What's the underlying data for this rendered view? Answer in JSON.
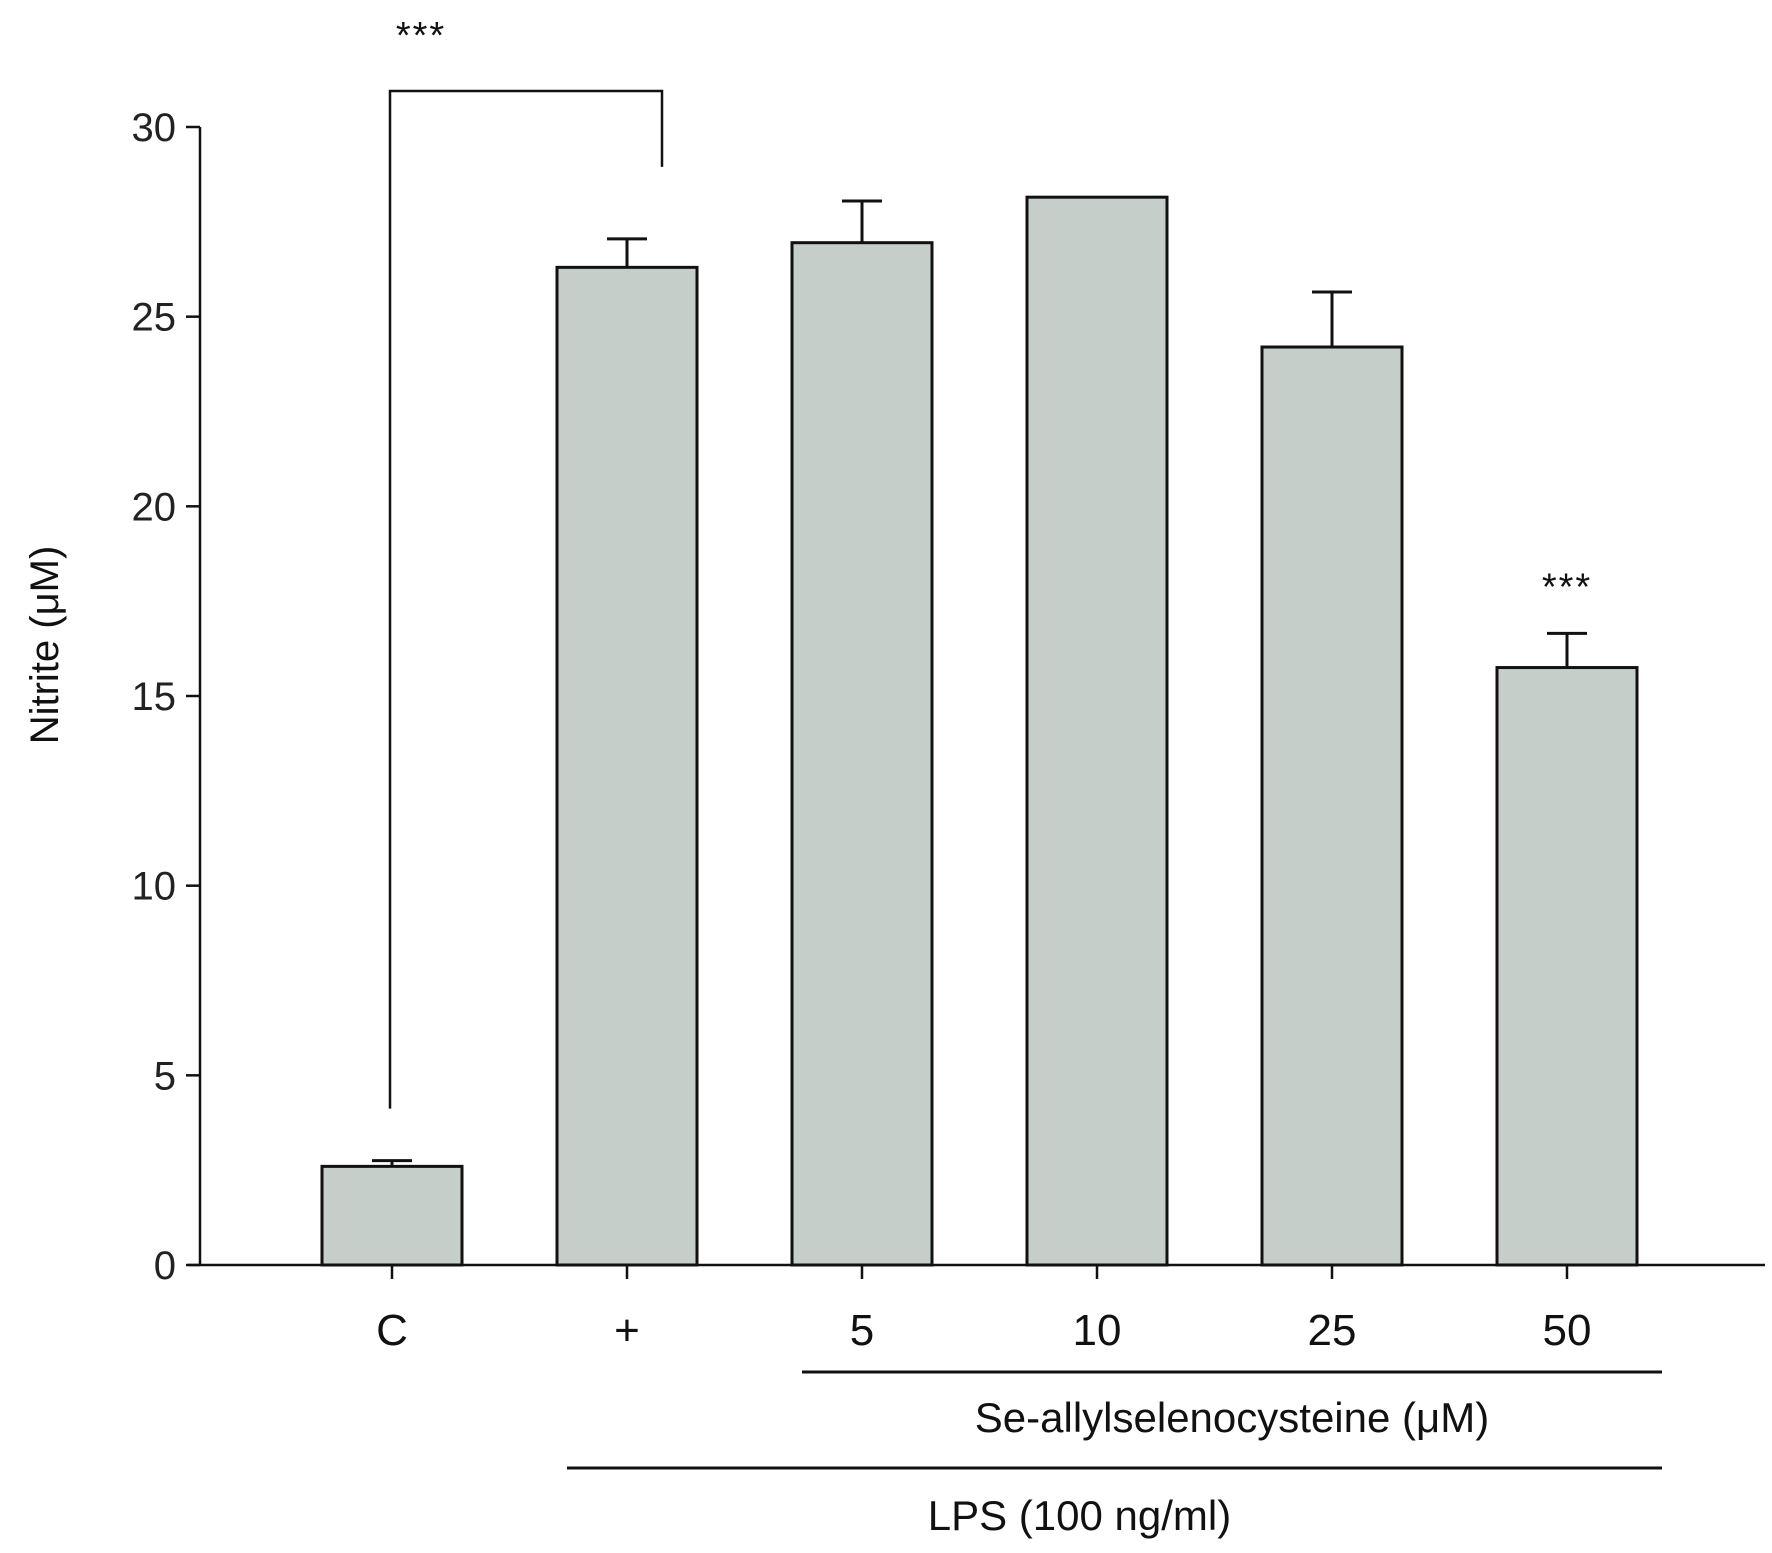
{
  "chart_data": {
    "type": "bar",
    "categories": [
      "C",
      "+",
      "5",
      "10",
      "25",
      "50"
    ],
    "values": [
      2.6,
      26.3,
      26.95,
      28.15,
      24.2,
      15.75
    ],
    "error_upper": [
      2.75,
      27.05,
      28.05,
      28.15,
      25.65,
      16.65
    ],
    "ylabel": "Nitrite (μM)",
    "ylim": [
      0,
      30
    ],
    "yticks": [
      0,
      5,
      10,
      15,
      20,
      25,
      30
    ],
    "bar_color": "#c5cec9",
    "bar_edge_color": "#111111",
    "grid": false,
    "group_labels": [
      {
        "text": "Se-allylselenocysteine (μM)",
        "categories": [
          "5",
          "10",
          "25",
          "50"
        ]
      },
      {
        "text": "LPS (100 ng/ml)",
        "categories": [
          "+",
          "5",
          "10",
          "25",
          "50"
        ]
      }
    ],
    "significance": [
      {
        "type": "bracket",
        "from": "C",
        "to": "+",
        "label": "***"
      },
      {
        "type": "above-bar",
        "category": "50",
        "label": "***"
      }
    ]
  }
}
